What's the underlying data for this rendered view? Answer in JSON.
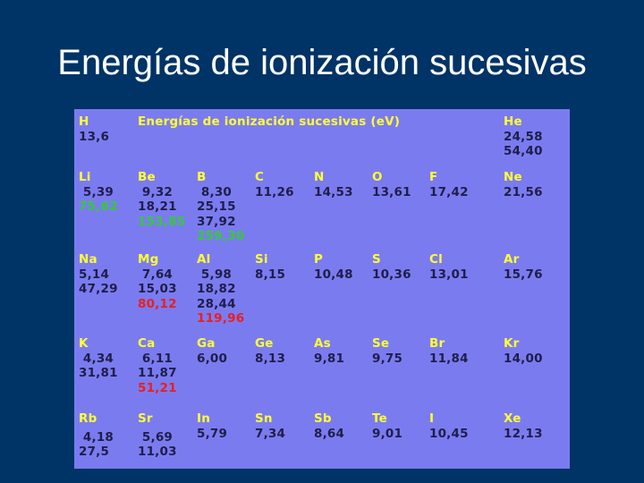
{
  "slide": {
    "title": "Energías de ionización sucesivas"
  },
  "table": {
    "title": "Energías de ionización sucesivas (eV)",
    "colors": {
      "panel": "#7b7bf0",
      "symbol": "#ffff33",
      "value": "#1e1e4a",
      "highlight_green": "#33cc33",
      "highlight_red": "#e8201e"
    },
    "elements": [
      {
        "symbol": "H",
        "values": [
          "13,6"
        ]
      },
      {
        "symbol": "He",
        "values": [
          "24,58",
          "54,40"
        ]
      },
      {
        "symbol": "Li",
        "values": [
          "5,39",
          "75,62"
        ],
        "highlight": 1,
        "highlight_color": "green"
      },
      {
        "symbol": "Be",
        "values": [
          "9,32",
          "18,21",
          "153,85"
        ],
        "highlight": 2,
        "highlight_color": "green"
      },
      {
        "symbol": "B",
        "values": [
          "8,30",
          "25,15",
          "37,92",
          "259,30"
        ],
        "highlight": 3,
        "highlight_color": "green"
      },
      {
        "symbol": "C",
        "values": [
          "11,26"
        ]
      },
      {
        "symbol": "N",
        "values": [
          "14,53"
        ]
      },
      {
        "symbol": "O",
        "values": [
          "13,61"
        ]
      },
      {
        "symbol": "F",
        "values": [
          "17,42"
        ]
      },
      {
        "symbol": "Ne",
        "values": [
          "21,56"
        ]
      },
      {
        "symbol": "Na",
        "values": [
          "5,14",
          "47,29"
        ]
      },
      {
        "symbol": "Mg",
        "values": [
          "7,64",
          "15,03",
          "80,12"
        ],
        "highlight": 2,
        "highlight_color": "red"
      },
      {
        "symbol": "Al",
        "values": [
          "5,98",
          "18,82",
          "28,44",
          "119,96"
        ],
        "highlight": 3,
        "highlight_color": "red"
      },
      {
        "symbol": "Si",
        "values": [
          "8,15"
        ]
      },
      {
        "symbol": "P",
        "values": [
          "10,48"
        ]
      },
      {
        "symbol": "S",
        "values": [
          "10,36"
        ]
      },
      {
        "symbol": "Cl",
        "values": [
          "13,01"
        ]
      },
      {
        "symbol": "Ar",
        "values": [
          "15,76"
        ]
      },
      {
        "symbol": "K",
        "values": [
          "4,34",
          "31,81"
        ]
      },
      {
        "symbol": "Ca",
        "values": [
          "6,11",
          "11,87",
          "51,21"
        ],
        "highlight": 2,
        "highlight_color": "red"
      },
      {
        "symbol": "Ga",
        "values": [
          "6,00"
        ]
      },
      {
        "symbol": "Ge",
        "values": [
          "8,13"
        ]
      },
      {
        "symbol": "As",
        "values": [
          "9,81"
        ]
      },
      {
        "symbol": "Se",
        "values": [
          "9,75"
        ]
      },
      {
        "symbol": "Br",
        "values": [
          "11,84"
        ]
      },
      {
        "symbol": "Kr",
        "values": [
          "14,00"
        ]
      },
      {
        "symbol": "Rb",
        "values": [
          "4,18",
          "27,5"
        ]
      },
      {
        "symbol": "Sr",
        "values": [
          "5,69",
          "11,03"
        ]
      },
      {
        "symbol": "In",
        "values": [
          "5,79"
        ]
      },
      {
        "symbol": "Sn",
        "values": [
          "7,34"
        ]
      },
      {
        "symbol": "Sb",
        "values": [
          "8,64"
        ]
      },
      {
        "symbol": "Te",
        "values": [
          "9,01"
        ]
      },
      {
        "symbol": "I",
        "values": [
          "10,45"
        ]
      },
      {
        "symbol": "Xe",
        "values": [
          "12,13"
        ]
      }
    ]
  }
}
